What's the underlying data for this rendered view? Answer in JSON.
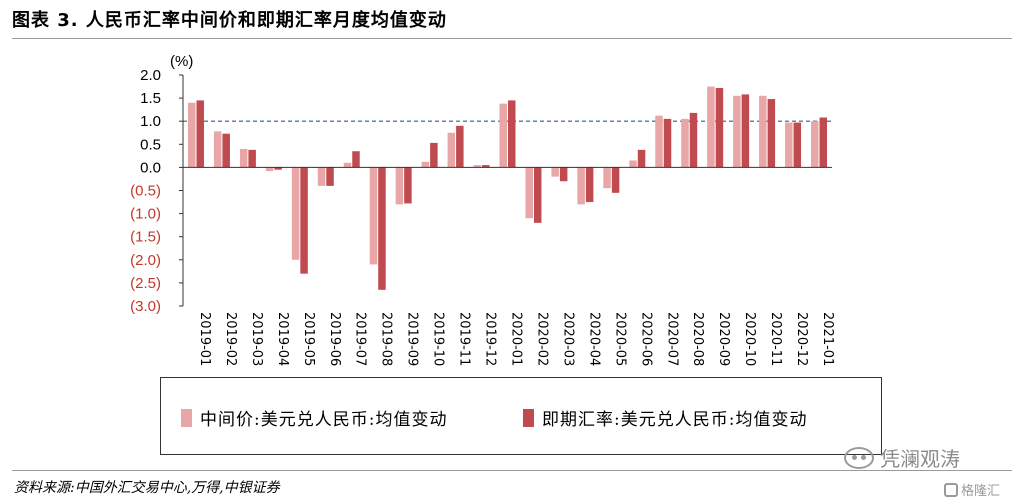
{
  "title": "图表 3. 人民币汇率中间价和即期汇率月度均值变动",
  "source": "资料来源:中国外汇交易中心,万得,中银证券",
  "watermark": "凭澜观涛",
  "watermark2": "格隆汇",
  "colors": {
    "central": "#e8a6a6",
    "spot": "#bf4b50",
    "negative_tick": "#c0392b",
    "reference_line": "#2f5d9e"
  },
  "chart_data": {
    "type": "bar",
    "unit_label": "(%)",
    "categories": [
      "2019-01",
      "2019-02",
      "2019-03",
      "2019-04",
      "2019-05",
      "2019-06",
      "2019-07",
      "2019-08",
      "2019-09",
      "2019-10",
      "2019-11",
      "2019-12",
      "2020-01",
      "2020-02",
      "2020-03",
      "2020-04",
      "2020-05",
      "2020-06",
      "2020-07",
      "2020-08",
      "2020-09",
      "2020-10",
      "2020-11",
      "2020-12",
      "2021-01"
    ],
    "series": [
      {
        "name": "中间价:美元兑人民币:均值变动",
        "color": "#e8a6a6",
        "values": [
          1.4,
          0.78,
          0.4,
          -0.08,
          -2.0,
          -0.4,
          0.1,
          -2.1,
          -0.8,
          0.12,
          0.75,
          0.05,
          1.38,
          -1.1,
          -0.2,
          -0.8,
          -0.45,
          0.15,
          1.12,
          1.05,
          1.75,
          1.55,
          1.55,
          0.97,
          1.0
        ]
      },
      {
        "name": "即期汇率:美元兑人民币:均值变动",
        "color": "#bf4b50",
        "values": [
          1.45,
          0.73,
          0.38,
          -0.05,
          -2.3,
          -0.4,
          0.35,
          -2.65,
          -0.78,
          0.53,
          0.9,
          0.05,
          1.45,
          -1.2,
          -0.3,
          -0.75,
          -0.55,
          0.38,
          1.05,
          1.18,
          1.72,
          1.58,
          1.48,
          0.97,
          1.08
        ]
      }
    ],
    "yticks": [
      "2.0",
      "1.5",
      "1.0",
      "0.5",
      "0.0",
      "(0.5)",
      "(1.0)",
      "(1.5)",
      "(2.0)",
      "(2.5)",
      "(3.0)"
    ],
    "ylim": [
      -3.0,
      2.0
    ],
    "reference_line": 1.0,
    "legend": "bottom",
    "grid": false
  }
}
